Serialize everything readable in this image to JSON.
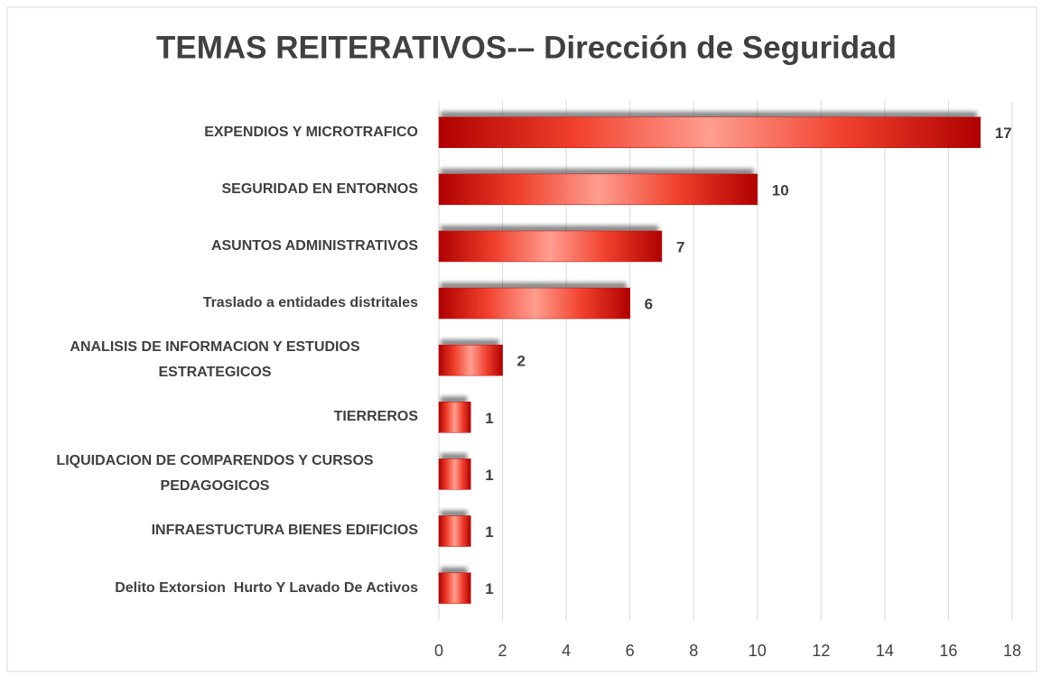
{
  "chart_data": {
    "type": "barh",
    "title": "TEMAS REITERATIVOS-– Dirección de Seguridad",
    "categories": [
      "EXPENDIOS Y MICROTRAFICO",
      "SEGURIDAD EN ENTORNOS",
      "ASUNTOS ADMINISTRATIVOS",
      "Traslado a entidades distritales",
      "ANALISIS DE INFORMACION Y ESTUDIOS ESTRATEGICOS",
      "TIERREROS",
      "LIQUIDACION DE COMPARENDOS Y CURSOS PEDAGOGICOS",
      "INFRAESTUCTURA BIENES EDIFICIOS",
      "Delito Extorsion  Hurto Y Lavado De Activos"
    ],
    "values": [
      17,
      10,
      7,
      6,
      2,
      1,
      1,
      1,
      1
    ],
    "color": "#c00000",
    "xlim": [
      0,
      18
    ],
    "xticks": [
      0,
      2,
      4,
      6,
      8,
      10,
      12,
      14,
      16,
      18
    ],
    "grid": true
  }
}
